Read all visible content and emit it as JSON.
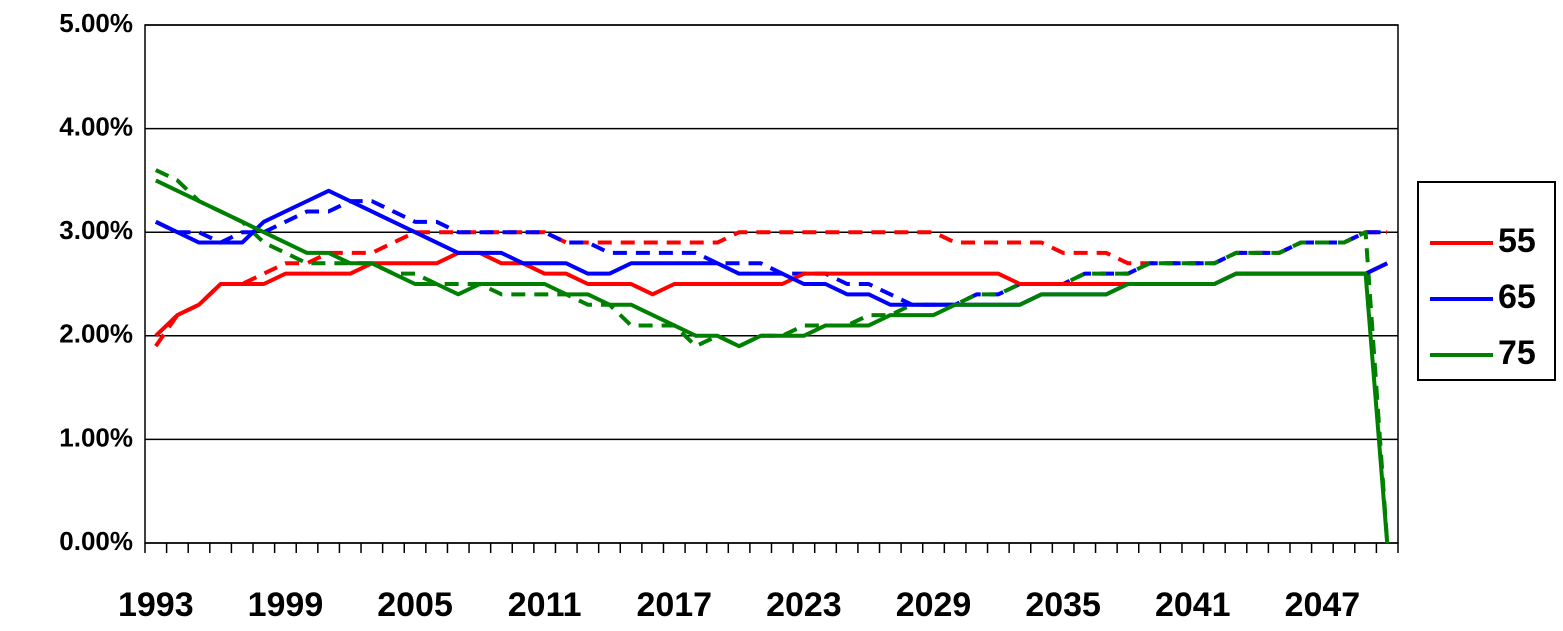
{
  "chart_data": {
    "type": "line",
    "categories": [
      "1993",
      null,
      null,
      null,
      null,
      null,
      "1999",
      null,
      null,
      null,
      null,
      null,
      "2005",
      null,
      null,
      null,
      null,
      null,
      "2011",
      null,
      null,
      null,
      null,
      null,
      "2017",
      null,
      null,
      null,
      null,
      null,
      "2023",
      null,
      null,
      null,
      null,
      null,
      "2029",
      null,
      null,
      null,
      null,
      null,
      "2035",
      null,
      null,
      null,
      null,
      null,
      "2041",
      null,
      null,
      null,
      null,
      null,
      "2047",
      null,
      null,
      null
    ],
    "ylim": [
      0,
      5
    ],
    "yticks": [
      {
        "value": 0,
        "label": "0.00%"
      },
      {
        "value": 1,
        "label": "1.00%"
      },
      {
        "value": 2,
        "label": "2.00%"
      },
      {
        "value": 3,
        "label": "3.00%"
      },
      {
        "value": 4,
        "label": "4.00%"
      },
      {
        "value": 5,
        "label": "5.00%"
      }
    ],
    "grid": true,
    "legend": "right",
    "series": [
      {
        "name": "55",
        "color": "#ff0000",
        "values": [
          2.0,
          2.2,
          2.3,
          2.5,
          2.5,
          2.5,
          2.6,
          2.6,
          2.6,
          2.6,
          2.7,
          2.7,
          2.7,
          2.7,
          2.8,
          2.8,
          2.7,
          2.7,
          2.6,
          2.6,
          2.5,
          2.5,
          2.5,
          2.4,
          2.5,
          2.5,
          2.5,
          2.5,
          2.5,
          2.5,
          2.6,
          2.6,
          2.6,
          2.6,
          2.6,
          2.6,
          2.6,
          2.6,
          2.6,
          2.6,
          2.5,
          2.5,
          2.5,
          2.5,
          2.5,
          2.5,
          2.5,
          2.5,
          2.5,
          2.5,
          2.6,
          2.6,
          2.6,
          2.6,
          2.6,
          2.6,
          2.6,
          2.7
        ]
      },
      {
        "name": "65",
        "color": "#0000ff",
        "values": [
          3.1,
          3.0,
          2.9,
          2.9,
          2.9,
          3.1,
          3.2,
          3.3,
          3.4,
          3.3,
          3.2,
          3.1,
          3.0,
          2.9,
          2.8,
          2.8,
          2.8,
          2.7,
          2.7,
          2.7,
          2.6,
          2.6,
          2.7,
          2.7,
          2.7,
          2.7,
          2.7,
          2.6,
          2.6,
          2.6,
          2.5,
          2.5,
          2.4,
          2.4,
          2.3,
          2.3,
          2.3,
          2.3,
          2.3,
          2.3,
          2.3,
          2.4,
          2.4,
          2.4,
          2.4,
          2.5,
          2.5,
          2.5,
          2.5,
          2.5,
          2.6,
          2.6,
          2.6,
          2.6,
          2.6,
          2.6,
          2.6,
          2.7
        ]
      },
      {
        "name": "75",
        "color": "#008000",
        "values": [
          3.5,
          3.4,
          3.3,
          3.2,
          3.1,
          3.0,
          2.9,
          2.8,
          2.8,
          2.7,
          2.7,
          2.6,
          2.5,
          2.5,
          2.4,
          2.5,
          2.5,
          2.5,
          2.5,
          2.4,
          2.4,
          2.3,
          2.3,
          2.2,
          2.1,
          2.0,
          2.0,
          1.9,
          2.0,
          2.0,
          2.0,
          2.1,
          2.1,
          2.1,
          2.2,
          2.2,
          2.2,
          2.3,
          2.3,
          2.3,
          2.3,
          2.4,
          2.4,
          2.4,
          2.4,
          2.5,
          2.5,
          2.5,
          2.5,
          2.5,
          2.6,
          2.6,
          2.6,
          2.6,
          2.6,
          2.6,
          2.6,
          0
        ]
      },
      {
        "color": "#ff0000",
        "dashed": true,
        "values": [
          1.9,
          2.2,
          2.3,
          2.5,
          2.5,
          2.6,
          2.7,
          2.7,
          2.8,
          2.8,
          2.8,
          2.9,
          3.0,
          3.0,
          3.0,
          3.0,
          3.0,
          3.0,
          3.0,
          2.9,
          2.9,
          2.9,
          2.9,
          2.9,
          2.9,
          2.9,
          2.9,
          3.0,
          3.0,
          3.0,
          3.0,
          3.0,
          3.0,
          3.0,
          3.0,
          3.0,
          3.0,
          2.9,
          2.9,
          2.9,
          2.9,
          2.9,
          2.8,
          2.8,
          2.8,
          2.7,
          2.7,
          2.7,
          2.7,
          2.7,
          2.8,
          2.8,
          2.8,
          2.9,
          2.9,
          2.9,
          3.0,
          3.0
        ]
      },
      {
        "color": "#0000ff",
        "dashed": true,
        "values": [
          3.1,
          3.0,
          3.0,
          2.9,
          3.0,
          3.0,
          3.1,
          3.2,
          3.2,
          3.3,
          3.3,
          3.2,
          3.1,
          3.1,
          3.0,
          3.0,
          3.0,
          3.0,
          3.0,
          2.9,
          2.9,
          2.8,
          2.8,
          2.8,
          2.8,
          2.8,
          2.7,
          2.7,
          2.7,
          2.6,
          2.6,
          2.6,
          2.5,
          2.5,
          2.4,
          2.3,
          2.3,
          2.3,
          2.4,
          2.4,
          2.5,
          2.5,
          2.5,
          2.6,
          2.6,
          2.6,
          2.7,
          2.7,
          2.7,
          2.7,
          2.8,
          2.8,
          2.8,
          2.9,
          2.9,
          2.9,
          3.0,
          3.0
        ]
      },
      {
        "color": "#008000",
        "dashed": true,
        "values": [
          3.6,
          3.5,
          3.3,
          3.2,
          3.1,
          2.9,
          2.8,
          2.7,
          2.7,
          2.7,
          2.7,
          2.6,
          2.6,
          2.5,
          2.5,
          2.5,
          2.4,
          2.4,
          2.4,
          2.4,
          2.3,
          2.3,
          2.1,
          2.1,
          2.1,
          1.9,
          2.0,
          1.9,
          2.0,
          2.0,
          2.1,
          2.1,
          2.1,
          2.2,
          2.2,
          2.3,
          2.3,
          2.3,
          2.4,
          2.4,
          2.5,
          2.5,
          2.5,
          2.6,
          2.6,
          2.6,
          2.7,
          2.7,
          2.7,
          2.7,
          2.8,
          2.8,
          2.8,
          2.9,
          2.9,
          2.9,
          3.0,
          0
        ]
      }
    ]
  }
}
